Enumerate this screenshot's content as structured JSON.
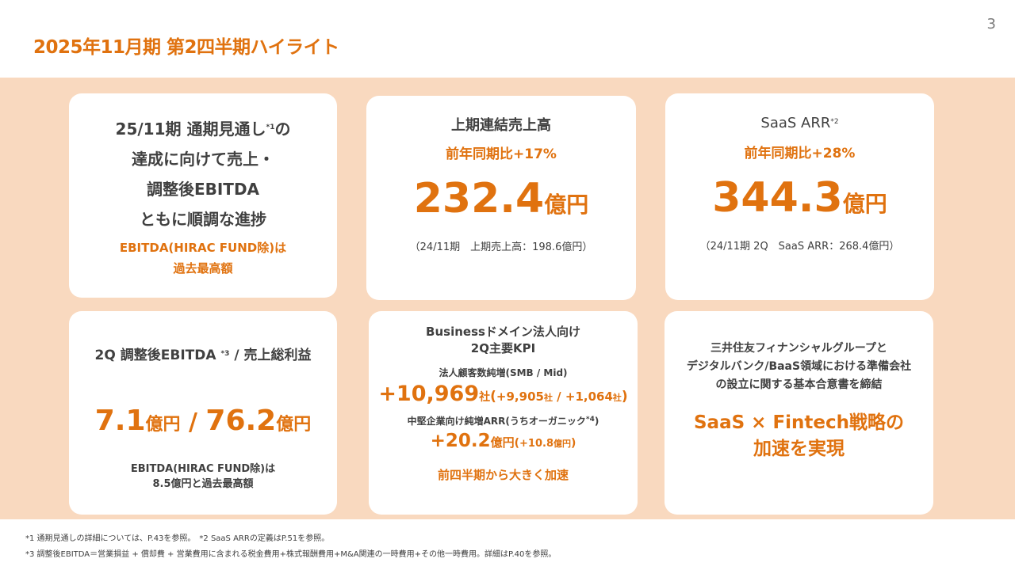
{
  "page_number": "3",
  "title": "2025年11月期 第2四半期ハイライト",
  "card1": {
    "line1": "25/11期 通期見通し",
    "line1_sup": "*1",
    "line1_tail": "の",
    "line2": "達成に向けて売上・",
    "line3": "調整後EBITDA",
    "line4": "ともに順調な進捗",
    "line5": "EBITDA(HIRAC FUND除)は",
    "line6": "過去最高額"
  },
  "card2": {
    "heading": "上期連結売上高",
    "growth": "前年同期比+17%",
    "value": "232.4",
    "unit": "億円",
    "note": "（24/11期　上期売上高：198.6億円）"
  },
  "card3": {
    "heading": "SaaS ARR",
    "heading_sup": "*2",
    "growth": "前年同期比+28%",
    "value": "344.3",
    "unit": "億円",
    "note": "（24/11期 2Q　SaaS ARR：268.4億円）"
  },
  "card4": {
    "heading_a": "2Q 調整後EBITDA ",
    "heading_sup": "*3",
    "heading_b": " / 売上総利益",
    "value1": "7.1",
    "unit1": "億円",
    "sep": " / ",
    "value2": "76.2",
    "unit2": "億円",
    "note1": "EBITDA(HIRAC FUND除)は",
    "note2": "8.5億円と過去最高額"
  },
  "card5": {
    "heading1": "Businessドメイン法人向け",
    "heading2": "2Q主要KPI",
    "kpi1_label": "法人顧客数純増(SMB / Mid)",
    "kpi1_value": "+10,969",
    "kpi1_unit": "社",
    "kpi1_paren_open": "(",
    "kpi1_sub1": "+9,905",
    "kpi1_sub1_unit": "社",
    "kpi1_mid": " / ",
    "kpi1_sub2": "+1,064",
    "kpi1_sub2_unit": "社",
    "kpi1_paren_close": ")",
    "kpi2_label": "中堅企業向け純増ARR(うちオーガニック",
    "kpi2_label_sup": "*4",
    "kpi2_label_tail": ")",
    "kpi2_value": "+20.2",
    "kpi2_unit": "億円",
    "kpi2_paren_open": "(",
    "kpi2_sub": "+10.8",
    "kpi2_sub_unit": "億円",
    "kpi2_paren_close": ")",
    "footer": "前四半期から大きく加速"
  },
  "card6": {
    "line1": "三井住友フィナンシャルグループと",
    "line2": "デジタルバンク/BaaS領域における準備会社",
    "line3": "の設立に関する基本合意書を締結",
    "highlight1": "SaaS × Fintech戦略の",
    "highlight2": "加速を実現"
  },
  "footnotes": {
    "line1": "*1 通期見通しの詳細については、P.43を参照。　*2 SaaS ARRの定義はP.51を参照。",
    "line2": "*3 調整後EBITDA＝営業損益 + 償却費 + 営業費用に含まれる税金費用+株式報酬費用+M&A関連の一時費用+その他一時費用。詳細はP.40を参照。"
  },
  "colors": {
    "accent": "#e0720f",
    "band": "#f9d9bf",
    "text": "#404040"
  }
}
